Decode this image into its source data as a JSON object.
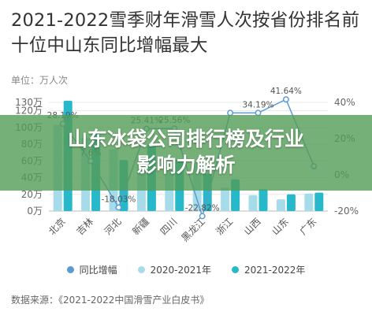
{
  "page": {
    "title": "2021-2022雪季财年滑雪人次按省份排名前十位中山东同比增幅最大",
    "unit_label": "单位：万人次",
    "source": "数据来源：《2021-2022中国滑雪产业白皮书》"
  },
  "banner": {
    "line1": "山东冰袋公司排行榜及行业",
    "line2": "影响力解析"
  },
  "legend": {
    "growth": "同比增幅",
    "s2021": "2020-2021年",
    "s2022": "2021-2022年"
  },
  "colors": {
    "growth": "#5b9bd5",
    "s2021": "#a6dcea",
    "s2022": "#27b8c9",
    "banner": "#529c56"
  },
  "chart_data": {
    "type": "bar",
    "categories": [
      "北京",
      "吉林",
      "河北",
      "新疆",
      "四川",
      "黑龙江",
      "浙江",
      "山西",
      "山东",
      "广东"
    ],
    "series": [
      {
        "name": "2020-2021年",
        "type": "bar",
        "axis": "left",
        "values": [
          103,
          88,
          74,
          64,
          49,
          58,
          28,
          19,
          14,
          21
        ]
      },
      {
        "name": "2021-2022年",
        "type": "bar",
        "axis": "left",
        "values": [
          132,
          95,
          61,
          80,
          62,
          45,
          38,
          26,
          20,
          22
        ]
      },
      {
        "name": "同比增幅",
        "type": "line",
        "axis": "right",
        "values": [
          28.19,
          7.6,
          -18.03,
          25.41,
          25.56,
          -22.82,
          34.19,
          34.19,
          41.64,
          4.76
        ]
      }
    ],
    "data_labels": [
      "28.19%",
      "7.6%",
      "-18.03%",
      "25.41%",
      "25.56%",
      "-22.82%",
      "",
      "34.19%",
      "41.64%",
      ""
    ],
    "left_axis": {
      "ticks": [
        "0万",
        "20万",
        "40万",
        "60万",
        "80万",
        "100万",
        "120万",
        "130万"
      ],
      "ylim": [
        0,
        130
      ]
    },
    "right_axis": {
      "ticks": [
        "-20%",
        "0%",
        "20%",
        "40%"
      ],
      "ylim": [
        -20,
        40
      ]
    },
    "grid": true,
    "legend_position": "bottom"
  }
}
